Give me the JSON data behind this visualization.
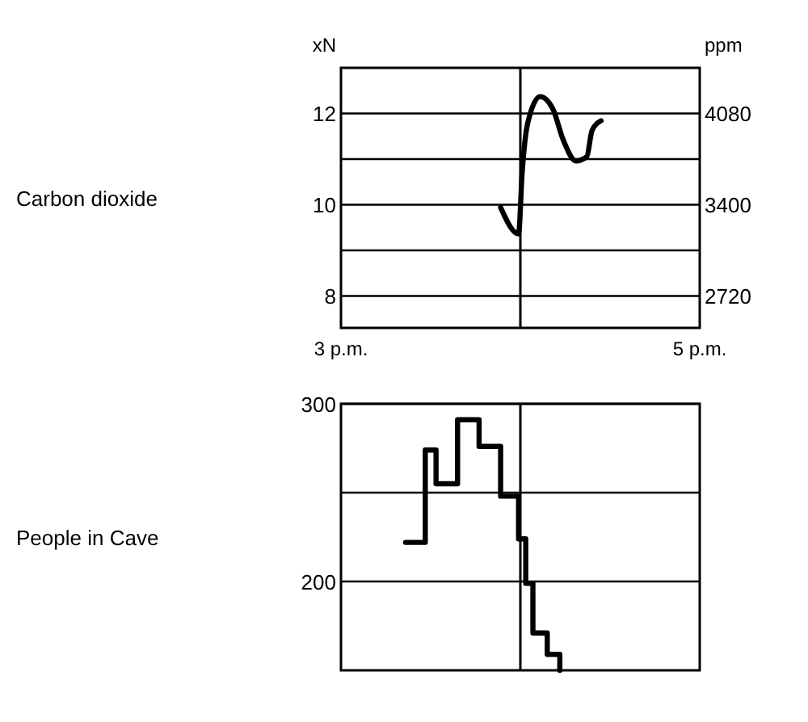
{
  "chart_data": [
    {
      "type": "line",
      "ylabel": "Carbon dioxide",
      "annotations": [
        "xN"
      ],
      "y2label": "ppm",
      "xlim": [
        3,
        5
      ],
      "xticks": [
        {
          "value": 3,
          "label": "3 p.m."
        },
        {
          "value": 5,
          "label": "5 p.m."
        }
      ],
      "ylim": [
        7.3,
        13
      ],
      "yticks": [
        8,
        {
          "value": 9,
          "label": null
        },
        10,
        {
          "value": 11,
          "label": null
        },
        12
      ],
      "y2lim": [
        2482,
        4420
      ],
      "y2ticks": [
        2720,
        3400,
        4080
      ],
      "grid": "y",
      "line_style": "solid",
      "marker": "none",
      "x": [
        3.89,
        3.99,
        4.01,
        4.04,
        4.11,
        4.18,
        4.24,
        4.31,
        4.37,
        4.4,
        4.45
      ],
      "series": [
        {
          "color": "#000000",
          "values": [
            9.94,
            9.36,
            10.7,
            11.77,
            12.37,
            12.11,
            11.41,
            10.96,
            11.05,
            11.63,
            11.84
          ]
        }
      ],
      "ref_lines": [
        {
          "axis": "x",
          "value": 4,
          "label": null
        }
      ]
    },
    {
      "type": "step",
      "ylabel": "People in Cave",
      "xlim": [
        3,
        5
      ],
      "ylim": [
        150,
        300
      ],
      "yticks": [
        200,
        {
          "value": 250,
          "label": null
        },
        300
      ],
      "tick_labels": "y",
      "grid": "y",
      "line_style": "solid",
      "marker": "none",
      "x": [
        3.36,
        3.47,
        3.53,
        3.65,
        3.77,
        3.89,
        3.99,
        4.03,
        4.07,
        4.15,
        4.22
      ],
      "series": [
        {
          "color": "#000000",
          "values": [
            222,
            274,
            255,
            291,
            276,
            248,
            224,
            199,
            171,
            159,
            150
          ]
        }
      ],
      "ref_lines": [
        {
          "axis": "x",
          "value": 4,
          "label": null
        }
      ]
    }
  ]
}
